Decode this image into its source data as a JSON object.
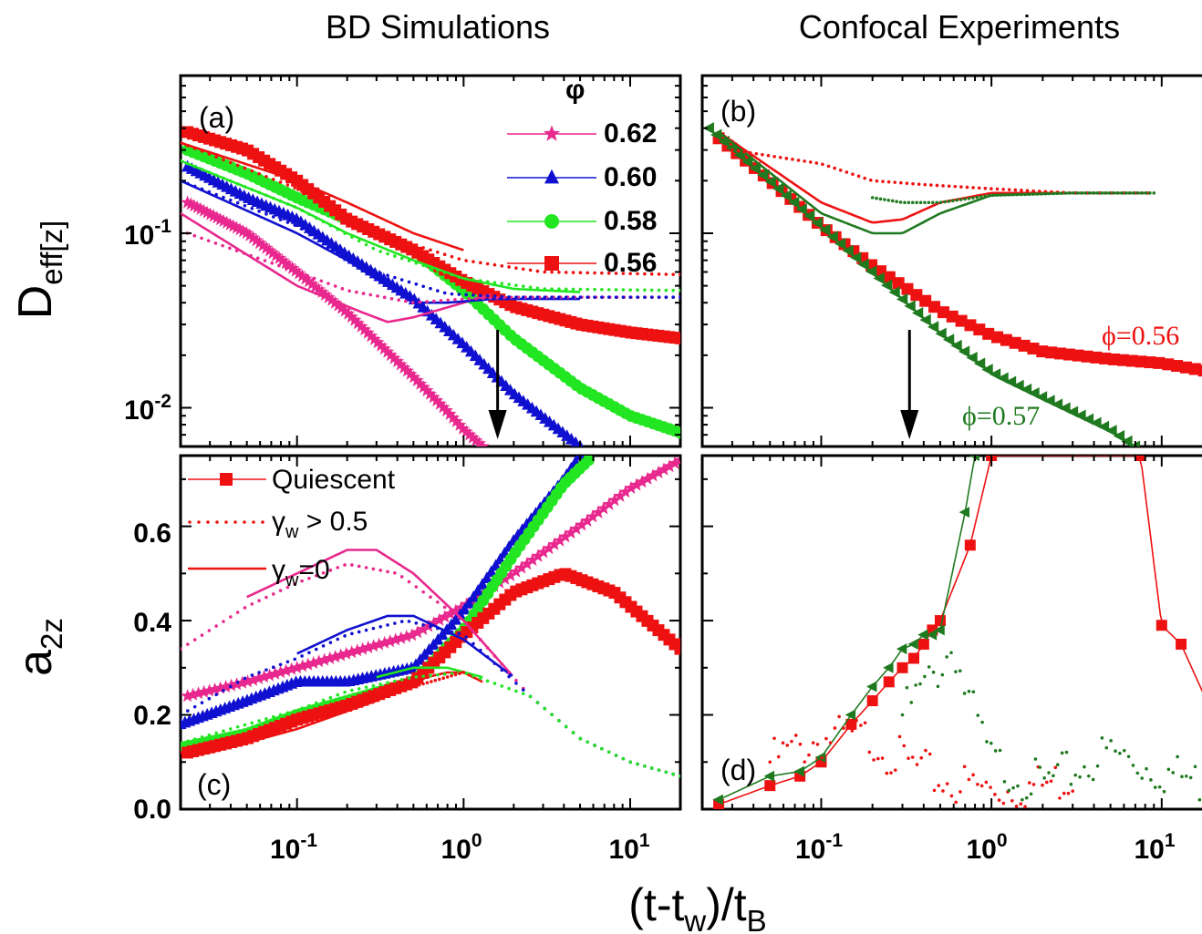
{
  "column_titles": {
    "left": "BD Simulations",
    "right": "Confocal Experiments"
  },
  "x_axis": {
    "label": "(t-t",
    "label_sub1": "w",
    "label_mid": ")/t",
    "label_sub2": "B",
    "scale": "log",
    "range": [
      0.02,
      20
    ],
    "ticks": [
      {
        "base": "10",
        "exp": "-1"
      },
      {
        "base": "10",
        "exp": "0"
      },
      {
        "base": "10",
        "exp": "1"
      }
    ]
  },
  "y_axis_top": {
    "label": "D",
    "label_sub": "eff[z]",
    "scale": "log",
    "range": [
      0.006,
      0.8
    ],
    "ticks": [
      {
        "base": "10",
        "exp": "-1"
      },
      {
        "base": "10",
        "exp": "-2"
      }
    ]
  },
  "y_axis_bottom": {
    "label": "a",
    "label_sub": "2z",
    "scale": "linear",
    "range": [
      0,
      0.75
    ],
    "ticks": [
      "0.0",
      "0.2",
      "0.4",
      "0.6"
    ]
  },
  "panels": {
    "a": "(a)",
    "b": "(b)",
    "c": "(c)",
    "d": "(d)"
  },
  "legend_phi": {
    "title": "φ",
    "entries": [
      {
        "label": "0.62",
        "color": "#e8288e",
        "marker": "star"
      },
      {
        "label": "0.60",
        "color": "#1010d0",
        "marker": "triangle"
      },
      {
        "label": "0.58",
        "color": "#22e622",
        "marker": "circle"
      },
      {
        "label": "0.56",
        "color": "#ee1111",
        "marker": "square"
      }
    ]
  },
  "legend_styles": {
    "entries": [
      {
        "label": "Quiescent",
        "style": "line-square"
      },
      {
        "label": "γ",
        "sub": "w",
        "rest": " > 0.5",
        "style": "dotted"
      },
      {
        "label": "γ",
        "sub": "w",
        "rest": "=0",
        "style": "solid"
      }
    ]
  },
  "annotations": {
    "phi56": "ϕ=0.56",
    "phi57": "ϕ=0.57"
  },
  "colors": {
    "phi062": "#e8288e",
    "phi060": "#1010d0",
    "phi058": "#22e622",
    "phi056": "#ee1111",
    "exp057": "#1f7a1f"
  },
  "chart_data": [
    {
      "panel": "a",
      "type": "line",
      "xscale": "log",
      "yscale": "log",
      "xlim": [
        0.02,
        20
      ],
      "ylim": [
        0.006,
        0.8
      ],
      "series": [
        {
          "name": "0.62",
          "kind": "quiescent",
          "x": [
            0.022,
            0.05,
            0.1,
            0.2,
            0.3,
            0.5,
            0.8,
            1.0,
            1.3
          ],
          "y": [
            0.15,
            0.1,
            0.06,
            0.035,
            0.024,
            0.015,
            0.0095,
            0.0075,
            0.006
          ]
        },
        {
          "name": "0.60",
          "kind": "quiescent",
          "x": [
            0.022,
            0.05,
            0.1,
            0.2,
            0.5,
            1.0,
            2.0,
            5.0
          ],
          "y": [
            0.24,
            0.16,
            0.12,
            0.075,
            0.042,
            0.023,
            0.012,
            0.006
          ]
        },
        {
          "name": "0.58",
          "kind": "quiescent",
          "x": [
            0.022,
            0.05,
            0.1,
            0.2,
            0.5,
            1.0,
            2.0,
            5.0,
            10,
            20
          ],
          "y": [
            0.3,
            0.22,
            0.16,
            0.12,
            0.08,
            0.047,
            0.025,
            0.013,
            0.009,
            0.0072
          ]
        },
        {
          "name": "0.56",
          "kind": "quiescent",
          "x": [
            0.022,
            0.05,
            0.1,
            0.2,
            0.5,
            1.0,
            2.0,
            5.0,
            10,
            20
          ],
          "y": [
            0.38,
            0.3,
            0.2,
            0.12,
            0.08,
            0.053,
            0.038,
            0.03,
            0.027,
            0.025
          ]
        },
        {
          "name": "0.62",
          "kind": "gamma0",
          "x": [
            0.02,
            0.1,
            0.25,
            0.35,
            0.5,
            1.0,
            1.5
          ],
          "y": [
            0.13,
            0.05,
            0.035,
            0.031,
            0.033,
            0.04,
            0.045
          ]
        },
        {
          "name": "0.60",
          "kind": "gamma0",
          "x": [
            0.02,
            0.1,
            0.2,
            0.5,
            0.8,
            1.5,
            5.0
          ],
          "y": [
            0.2,
            0.1,
            0.07,
            0.04,
            0.04,
            0.042,
            0.042
          ]
        },
        {
          "name": "0.58",
          "kind": "gamma0",
          "x": [
            0.02,
            0.1,
            0.2,
            0.5,
            1.0,
            2.0,
            5.0
          ],
          "y": [
            0.26,
            0.14,
            0.1,
            0.07,
            0.055,
            0.048,
            0.046
          ]
        },
        {
          "name": "0.56",
          "kind": "gamma0",
          "x": [
            0.02,
            0.1,
            0.2,
            0.5,
            1.0
          ],
          "y": [
            0.33,
            0.2,
            0.15,
            0.1,
            0.08
          ]
        },
        {
          "name": "0.62",
          "kind": "gamma_gt_0.5",
          "x": [
            0.022,
            0.1,
            0.2,
            0.5,
            1.0,
            2.0,
            5.0,
            20
          ],
          "y": [
            0.1,
            0.06,
            0.047,
            0.04,
            0.042,
            0.043,
            0.043,
            0.043
          ]
        },
        {
          "name": "0.60",
          "kind": "gamma_gt_0.5",
          "x": [
            0.02,
            0.1,
            0.3,
            0.8,
            2.0,
            20
          ],
          "y": [
            0.2,
            0.11,
            0.06,
            0.045,
            0.043,
            0.043
          ]
        },
        {
          "name": "0.58",
          "kind": "gamma_gt_0.5",
          "x": [
            0.02,
            0.1,
            0.3,
            1.0,
            3.0,
            20
          ],
          "y": [
            0.26,
            0.14,
            0.08,
            0.055,
            0.048,
            0.047
          ]
        },
        {
          "name": "0.56",
          "kind": "gamma_gt_0.5",
          "x": [
            0.02,
            0.1,
            0.3,
            1.0,
            3.0,
            20
          ],
          "y": [
            0.33,
            0.18,
            0.1,
            0.07,
            0.06,
            0.058
          ]
        }
      ],
      "annotation_arrow_x": 1.6
    },
    {
      "panel": "b",
      "type": "line",
      "xscale": "log",
      "yscale": "log",
      "xlim": [
        0.02,
        20
      ],
      "ylim": [
        0.006,
        0.8
      ],
      "series": [
        {
          "name": "ϕ=0.56",
          "kind": "quiescent",
          "x": [
            0.025,
            0.05,
            0.1,
            0.2,
            0.5,
            1.0,
            2.0,
            5.0,
            10,
            20
          ],
          "y": [
            0.35,
            0.2,
            0.11,
            0.065,
            0.036,
            0.026,
            0.021,
            0.019,
            0.018,
            0.016
          ]
        },
        {
          "name": "ϕ=0.57",
          "kind": "quiescent",
          "x": [
            0.022,
            0.05,
            0.1,
            0.2,
            0.5,
            1.0,
            2.0,
            5.0,
            7.0
          ],
          "y": [
            0.4,
            0.2,
            0.11,
            0.06,
            0.027,
            0.016,
            0.0115,
            0.0075,
            0.006
          ]
        },
        {
          "name": "ϕ=0.56",
          "kind": "gamma0",
          "x": [
            0.025,
            0.1,
            0.2,
            0.3,
            0.5,
            1.0,
            3.0,
            9.0
          ],
          "y": [
            0.38,
            0.15,
            0.115,
            0.12,
            0.15,
            0.17,
            0.17,
            0.17
          ]
        },
        {
          "name": "ϕ=0.57",
          "kind": "gamma0",
          "x": [
            0.025,
            0.1,
            0.2,
            0.3,
            0.5,
            1.0,
            3.0,
            9.0
          ],
          "y": [
            0.38,
            0.13,
            0.1,
            0.1,
            0.13,
            0.165,
            0.17,
            0.17
          ]
        },
        {
          "name": "ϕ=0.56",
          "kind": "gamma_gt_0.5",
          "x": [
            0.03,
            0.1,
            0.2,
            0.4,
            1.0,
            3.0,
            9.0
          ],
          "y": [
            0.3,
            0.25,
            0.2,
            0.19,
            0.18,
            0.17,
            0.17
          ]
        },
        {
          "name": "ϕ=0.57",
          "kind": "gamma_gt_0.5",
          "x": [
            0.2,
            0.3,
            0.5,
            1.0,
            3.0,
            9.0
          ],
          "y": [
            0.16,
            0.15,
            0.15,
            0.165,
            0.17,
            0.17
          ]
        }
      ],
      "annotation_arrow_x": 0.33
    },
    {
      "panel": "c",
      "type": "line",
      "xscale": "log",
      "yscale": "linear",
      "xlim": [
        0.02,
        20
      ],
      "ylim": [
        0,
        0.75
      ],
      "series": [
        {
          "name": "0.62",
          "kind": "quiescent",
          "x": [
            0.022,
            0.05,
            0.1,
            0.2,
            0.5,
            1.0,
            2.0,
            5.0,
            10,
            20
          ],
          "y": [
            0.24,
            0.27,
            0.3,
            0.33,
            0.37,
            0.43,
            0.5,
            0.6,
            0.68,
            0.74
          ]
        },
        {
          "name": "0.60",
          "kind": "quiescent",
          "x": [
            0.02,
            0.05,
            0.1,
            0.2,
            0.5,
            1.0,
            2.0,
            4.0,
            5.0
          ],
          "y": [
            0.18,
            0.23,
            0.27,
            0.27,
            0.3,
            0.42,
            0.57,
            0.7,
            0.75
          ]
        },
        {
          "name": "0.58",
          "kind": "quiescent",
          "x": [
            0.02,
            0.05,
            0.1,
            0.2,
            0.5,
            1.0,
            2.0,
            4.0,
            6.0
          ],
          "y": [
            0.13,
            0.16,
            0.2,
            0.23,
            0.27,
            0.38,
            0.54,
            0.69,
            0.75
          ]
        },
        {
          "name": "0.56",
          "kind": "quiescent",
          "x": [
            0.022,
            0.05,
            0.1,
            0.2,
            0.5,
            1.0,
            2.0,
            4.0,
            8.0,
            20
          ],
          "y": [
            0.12,
            0.15,
            0.19,
            0.22,
            0.27,
            0.37,
            0.46,
            0.5,
            0.46,
            0.34
          ]
        },
        {
          "name": "0.62",
          "kind": "gamma0",
          "x": [
            0.05,
            0.1,
            0.2,
            0.3,
            0.5,
            1.0,
            2.0
          ],
          "y": [
            0.45,
            0.5,
            0.55,
            0.55,
            0.5,
            0.4,
            0.28
          ]
        },
        {
          "name": "0.60",
          "kind": "gamma0",
          "x": [
            0.1,
            0.2,
            0.35,
            0.5,
            1.0,
            2.0
          ],
          "y": [
            0.33,
            0.38,
            0.41,
            0.41,
            0.36,
            0.28
          ]
        },
        {
          "name": "0.58",
          "kind": "gamma0",
          "x": [
            0.3,
            0.5,
            0.8,
            1.3
          ],
          "y": [
            0.28,
            0.3,
            0.3,
            0.28
          ]
        },
        {
          "name": "0.56",
          "kind": "gamma0",
          "x": [
            0.03,
            0.1,
            0.3,
            0.6,
            0.8,
            1.0,
            1.3
          ],
          "y": [
            0.12,
            0.17,
            0.23,
            0.28,
            0.29,
            0.29,
            0.27
          ]
        },
        {
          "name": "0.62",
          "kind": "gamma_gt_0.5",
          "x": [
            0.02,
            0.05,
            0.1,
            0.2,
            0.4,
            1.0,
            2.5,
            5.0,
            10,
            20
          ],
          "y": [
            0.34,
            0.43,
            0.48,
            0.52,
            0.5,
            0.4,
            0.24,
            0.15,
            0.1,
            0.07
          ]
        },
        {
          "name": "0.60",
          "kind": "gamma_gt_0.5",
          "x": [
            0.02,
            0.05,
            0.1,
            0.2,
            0.45,
            1.0,
            2.5,
            5.0,
            10,
            20
          ],
          "y": [
            0.2,
            0.28,
            0.32,
            0.37,
            0.4,
            0.37,
            0.24,
            0.15,
            0.1,
            0.07
          ]
        },
        {
          "name": "0.58",
          "kind": "gamma_gt_0.5",
          "x": [
            0.02,
            0.05,
            0.1,
            0.2,
            0.5,
            1.0,
            2.5,
            5.0,
            10,
            20
          ],
          "y": [
            0.14,
            0.18,
            0.21,
            0.25,
            0.28,
            0.29,
            0.24,
            0.15,
            0.1,
            0.07
          ]
        },
        {
          "name": "0.56",
          "kind": "gamma_gt_0.5",
          "x": [
            0.02,
            0.05,
            0.1,
            0.2,
            0.5,
            1.0
          ],
          "y": [
            0.12,
            0.15,
            0.18,
            0.22,
            0.26,
            0.29
          ]
        }
      ]
    },
    {
      "panel": "d",
      "type": "line",
      "xscale": "log",
      "yscale": "linear",
      "xlim": [
        0.02,
        20
      ],
      "ylim": [
        0,
        0.75
      ],
      "series": [
        {
          "name": "ϕ=0.56",
          "kind": "quiescent",
          "x": [
            0.025,
            0.05,
            0.075,
            0.1,
            0.15,
            0.2,
            0.25,
            0.3,
            0.35,
            0.4,
            0.45,
            0.5,
            0.75,
            1.0,
            7.5,
            10,
            13,
            20
          ],
          "y": [
            0.01,
            0.05,
            0.07,
            0.1,
            0.18,
            0.23,
            0.27,
            0.3,
            0.32,
            0.35,
            0.38,
            0.4,
            0.56,
            0.75,
            0.75,
            0.39,
            0.35,
            0.2
          ]
        },
        {
          "name": "ϕ=0.57",
          "kind": "quiescent",
          "x": [
            0.025,
            0.05,
            0.075,
            0.1,
            0.15,
            0.2,
            0.25,
            0.3,
            0.35,
            0.4,
            0.45,
            0.5,
            0.7,
            0.8
          ],
          "y": [
            0.02,
            0.07,
            0.08,
            0.11,
            0.2,
            0.26,
            0.3,
            0.34,
            0.35,
            0.37,
            0.37,
            0.38,
            0.63,
            0.75
          ]
        },
        {
          "name": "ϕ=0.56",
          "kind": "gamma_gt_0.5",
          "x": [
            0.05,
            0.1,
            0.2,
            0.3,
            0.5,
            1.0,
            2.0,
            3.0
          ],
          "y": [
            0.1,
            0.15,
            0.15,
            0.1,
            0.06,
            0.04,
            0.05,
            0.07
          ]
        },
        {
          "name": "ϕ=0.57",
          "kind": "gamma_gt_0.5",
          "x": [
            0.3,
            0.5,
            0.6,
            0.7,
            1.0,
            2.0,
            5.0,
            10,
            20
          ],
          "y": [
            0.2,
            0.3,
            0.35,
            0.25,
            0.1,
            0.05,
            0.12,
            0.08,
            0.05
          ]
        }
      ]
    }
  ]
}
